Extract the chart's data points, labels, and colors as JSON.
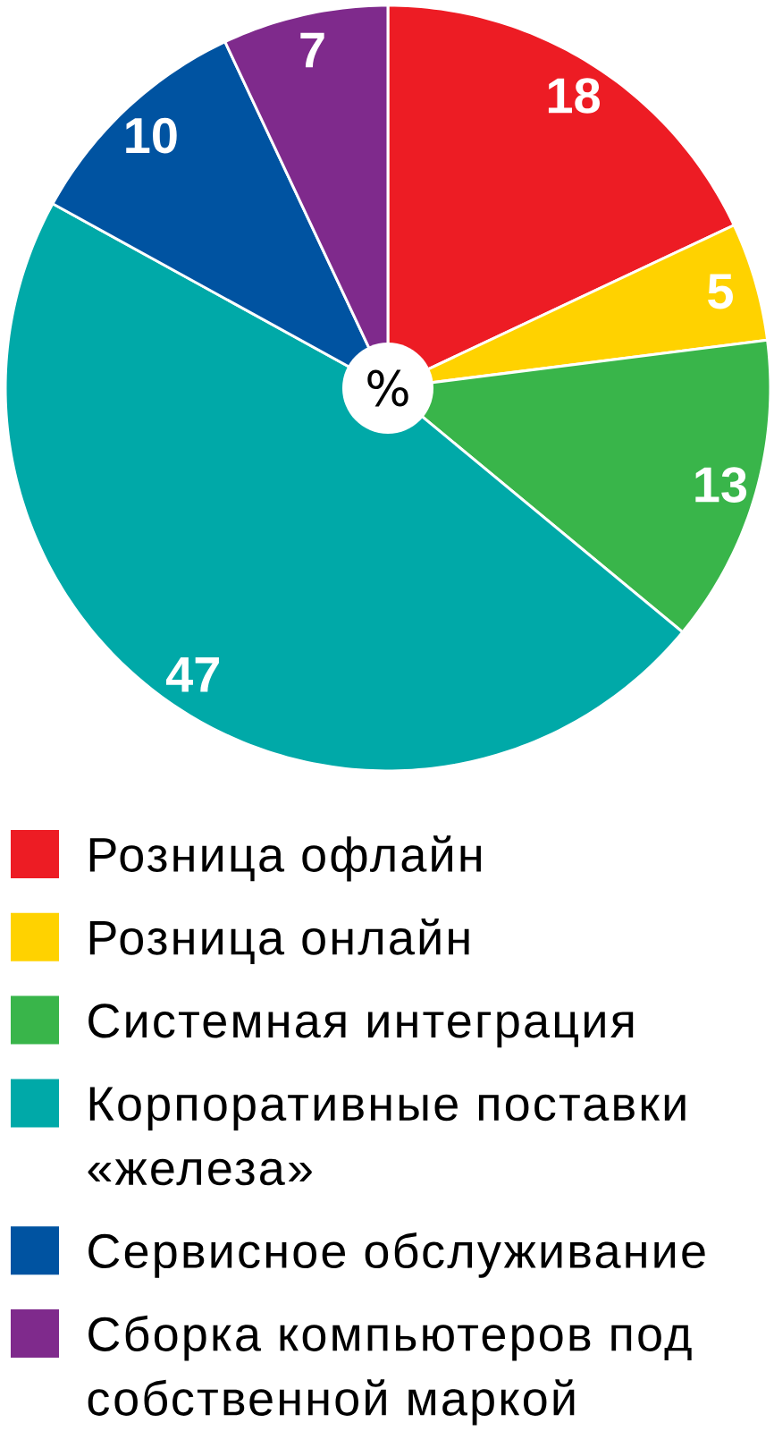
{
  "chart_data": {
    "type": "pie",
    "categories": [
      "Розница офлайн",
      "Розница онлайн",
      "Системная интеграция",
      "Корпоративные поставки «железа»",
      "Сервисное обслуживание",
      "Сборка компьютеров под собственной маркой"
    ],
    "values": [
      18,
      5,
      13,
      47,
      10,
      7
    ],
    "colors": [
      "#ed1c24",
      "#ffd200",
      "#39b54a",
      "#00a9a8",
      "#0053a1",
      "#7f2a8c"
    ],
    "data_labels": true,
    "legend": "bottom",
    "annotations": [
      "%"
    ]
  }
}
